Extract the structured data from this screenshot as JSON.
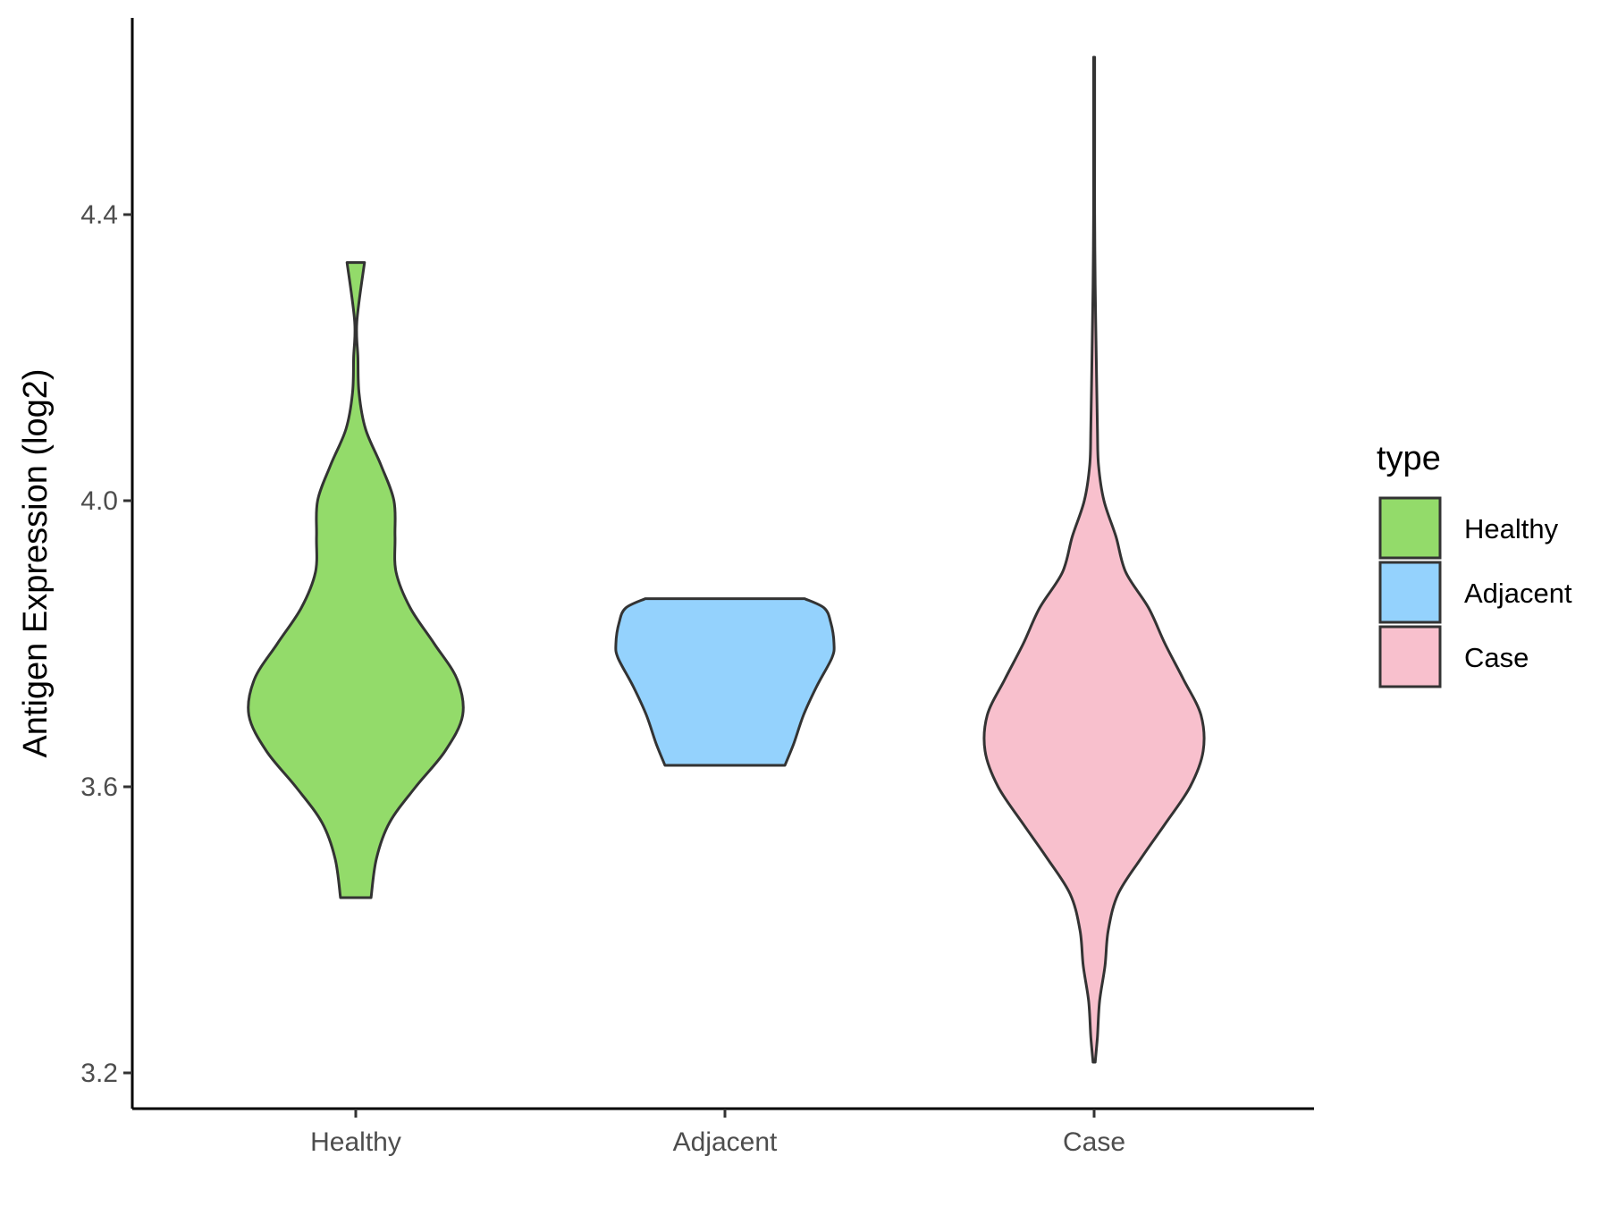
{
  "chart_data": {
    "type": "violin",
    "title": "",
    "xlabel": "",
    "ylabel": "Antigen Expression (log2)",
    "categories": [
      "Healthy",
      "Adjacent",
      "Case"
    ],
    "ylim": [
      3.15,
      4.72
    ],
    "yticks": [
      3.2,
      3.6,
      4.0,
      4.4
    ],
    "ytick_labels": [
      "3.2",
      "3.6",
      "4.0",
      "4.4"
    ],
    "grid": false,
    "legend": {
      "title": "type",
      "position": "right",
      "entries": [
        {
          "label": "Healthy",
          "color": "#93DB6A"
        },
        {
          "label": "Adjacent",
          "color": "#94D2FD"
        },
        {
          "label": "Case",
          "color": "#F8C0CD"
        }
      ]
    },
    "series": [
      {
        "category": "Healthy",
        "color": "#93DB6A",
        "min": 3.445,
        "max": 4.333,
        "profile": [
          [
            3.445,
            0.14
          ],
          [
            3.5,
            0.19
          ],
          [
            3.55,
            0.31
          ],
          [
            3.6,
            0.55
          ],
          [
            3.65,
            0.82
          ],
          [
            3.7,
            0.98
          ],
          [
            3.75,
            0.93
          ],
          [
            3.8,
            0.72
          ],
          [
            3.85,
            0.5
          ],
          [
            3.9,
            0.37
          ],
          [
            3.95,
            0.36
          ],
          [
            4.0,
            0.35
          ],
          [
            4.05,
            0.23
          ],
          [
            4.1,
            0.09
          ],
          [
            4.15,
            0.03
          ],
          [
            4.2,
            0.02
          ],
          [
            4.25,
            0.01
          ],
          [
            4.333,
            0.08
          ]
        ]
      },
      {
        "category": "Adjacent",
        "color": "#94D2FD",
        "min": 3.63,
        "max": 3.863,
        "profile": [
          [
            3.63,
            0.55
          ],
          [
            3.66,
            0.63
          ],
          [
            3.7,
            0.72
          ],
          [
            3.74,
            0.84
          ],
          [
            3.78,
            0.98
          ],
          [
            3.8,
            1.0
          ],
          [
            3.83,
            0.97
          ],
          [
            3.85,
            0.91
          ],
          [
            3.863,
            0.73
          ]
        ]
      },
      {
        "category": "Case",
        "color": "#F8C0CD",
        "min": 3.215,
        "max": 4.62,
        "profile": [
          [
            3.215,
            0.01
          ],
          [
            3.25,
            0.03
          ],
          [
            3.3,
            0.05
          ],
          [
            3.35,
            0.1
          ],
          [
            3.4,
            0.13
          ],
          [
            3.45,
            0.22
          ],
          [
            3.5,
            0.43
          ],
          [
            3.55,
            0.66
          ],
          [
            3.6,
            0.88
          ],
          [
            3.65,
            1.0
          ],
          [
            3.7,
            0.98
          ],
          [
            3.75,
            0.82
          ],
          [
            3.8,
            0.65
          ],
          [
            3.85,
            0.5
          ],
          [
            3.9,
            0.29
          ],
          [
            3.95,
            0.2
          ],
          [
            4.0,
            0.09
          ],
          [
            4.05,
            0.04
          ],
          [
            4.1,
            0.03
          ],
          [
            4.2,
            0.02
          ],
          [
            4.3,
            0.01
          ],
          [
            4.4,
            0.005
          ],
          [
            4.5,
            0.005
          ],
          [
            4.62,
            0.005
          ]
        ]
      }
    ]
  }
}
